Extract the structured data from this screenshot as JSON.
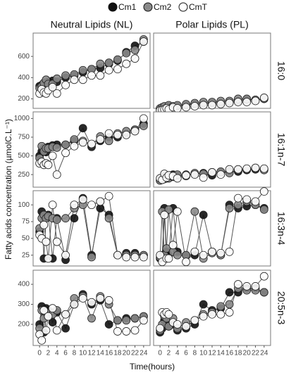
{
  "chart_data": {
    "type": "line",
    "xlabel": "Time(hours)",
    "ylabel": "Fatty acids concentration (µmolC.L⁻¹)",
    "series": [
      {
        "name": "Cm1",
        "color": "#111111"
      },
      {
        "name": "Cm2",
        "color": "#8a8a8a"
      },
      {
        "name": "CmT",
        "color": "#ffffff"
      }
    ],
    "columns": [
      "Neutral Lipids (NL)",
      "Polar Lipids (PL)"
    ],
    "x": [
      0,
      0.5,
      1,
      1.5,
      2,
      3,
      4,
      6,
      8,
      10,
      12,
      14,
      16,
      18,
      20,
      22,
      24
    ],
    "xlim": [
      -1,
      25
    ],
    "xticks": [
      0,
      2,
      4,
      6,
      8,
      10,
      12,
      14,
      16,
      18,
      20,
      22,
      24
    ],
    "rows": [
      {
        "label": "16:0",
        "ylim": [
          130,
          800
        ],
        "yticks": [
          200,
          400,
          600
        ],
        "values": [
          [
            [
              320,
              330,
              340,
              330,
              360,
              370,
              360,
              400,
              420,
              450,
              480,
              490,
              530,
              560,
              640,
              700,
              740
            ],
            [
              300,
              320,
              350,
              380,
              340,
              340,
              390,
              420,
              430,
              470,
              480,
              530,
              540,
              570,
              630,
              660,
              760
            ],
            [
              250,
              290,
              260,
              250,
              280,
              310,
              250,
              330,
              380,
              380,
              420,
              420,
              470,
              480,
              530,
              580,
              740
            ]
          ],
          [
            [
              100,
              110,
              120,
              120,
              130,
              125,
              130,
              140,
              150,
              150,
              160,
              160,
              170,
              180,
              190,
              190,
              200
            ],
            [
              110,
              120,
              130,
              110,
              140,
              130,
              140,
              150,
              160,
              170,
              170,
              180,
              180,
              200,
              200,
              190,
              200
            ],
            [
              90,
              95,
              100,
              110,
              100,
              120,
              110,
              120,
              130,
              140,
              140,
              150,
              160,
              170,
              170,
              180,
              210
            ]
          ]
        ]
      },
      {
        "label": "16:1n-7",
        "ylim": [
          110,
          1060
        ],
        "yticks": [
          250,
          500,
          750,
          1000
        ],
        "values": [
          [
            [
              500,
              560,
              600,
              550,
              620,
              640,
              650,
              650,
              700,
              870,
              620,
              700,
              750,
              750,
              800,
              850,
              930
            ],
            [
              470,
              630,
              560,
              600,
              600,
              620,
              610,
              650,
              720,
              700,
              650,
              760,
              700,
              800,
              830,
              850,
              900
            ],
            [
              400,
              420,
              380,
              400,
              380,
              500,
              250,
              540,
              630,
              680,
              660,
              720,
              800,
              780,
              780,
              830,
              1000
            ]
          ],
          [
            [
              180,
              200,
              230,
              200,
              220,
              250,
              240,
              250,
              260,
              270,
              240,
              280,
              300,
              290,
              310,
              320,
              320
            ],
            [
              170,
              210,
              190,
              230,
              200,
              220,
              250,
              230,
              270,
              260,
              280,
              290,
              270,
              310,
              320,
              330,
              310
            ],
            [
              200,
              180,
              260,
              210,
              240,
              230,
              200,
              240,
              250,
              210,
              280,
              250,
              320,
              320,
              330,
              340,
              330
            ]
          ]
        ]
      },
      {
        "label": "16:3n-4",
        "ylim": [
          12,
          118
        ],
        "yticks": [
          25,
          50,
          75,
          100
        ],
        "values": [
          [
            [
              60,
              90,
              20,
              80,
              85,
              20,
              80,
              18,
              80,
              110,
              25,
              95,
              85,
              25,
              28,
              28,
              25
            ],
            [
              65,
              80,
              85,
              80,
              83,
              80,
              78,
              80,
              95,
              100,
              22,
              105,
              80,
              25,
              25,
              25,
              25
            ],
            [
              55,
              50,
              70,
              45,
              20,
              100,
              45,
              25,
              100,
              108,
              100,
              105,
              113,
              25,
              22,
              22,
              22
            ]
          ],
          [
            [
              20,
              25,
              95,
              30,
              25,
              95,
              30,
              25,
              25,
              85,
              30,
              25,
              100,
              95,
              98,
              100,
              95
            ],
            [
              22,
              90,
              25,
              35,
              93,
              30,
              25,
              25,
              90,
              20,
              28,
              25,
              95,
              100,
              105,
              100,
              93
            ],
            [
              25,
              15,
              85,
              20,
              20,
              40,
              90,
              15,
              30,
              25,
              30,
              28,
              30,
              110,
              108,
              105,
              120
            ]
          ]
        ]
      },
      {
        "label": "20:5n-3",
        "ylim": [
          105,
          460
        ],
        "yticks": [
          200,
          300,
          400
        ],
        "values": [
          [
            [
              200,
              290,
              160,
              280,
              270,
              210,
              260,
              180,
              300,
              350,
              300,
              320,
              200,
              220,
              230,
              230,
              240
            ],
            [
              180,
              270,
              230,
              260,
              240,
              250,
              270,
              250,
              330,
              340,
              230,
              340,
              300,
              220,
              220,
              230,
              240
            ],
            [
              150,
              120,
              270,
              170,
              240,
              280,
              170,
              250,
              300,
              330,
              310,
              330,
              320,
              165,
              165,
              170,
              220
            ]
          ],
          [
            [
              160,
              180,
              220,
              200,
              190,
              200,
              170,
              180,
              200,
              300,
              270,
              280,
              360,
              360,
              380,
              380,
              360
            ],
            [
              170,
              200,
              240,
              230,
              190,
              230,
              180,
              210,
              220,
              250,
              260,
              290,
              300,
              380,
              370,
              370,
              360
            ],
            [
              180,
              260,
              250,
              260,
              250,
              210,
              200,
              190,
              220,
              240,
              250,
              250,
              260,
              400,
              390,
              390,
              440
            ]
          ]
        ]
      }
    ]
  }
}
